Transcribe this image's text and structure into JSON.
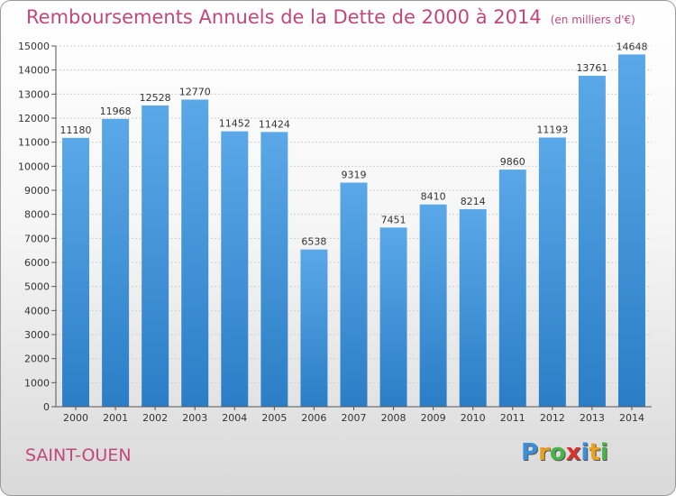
{
  "title": "Remboursements Annuels de la Dette de 2000 à 2014",
  "unit_note": "(en milliers d'€)",
  "town": "SAINT-OUEN",
  "logo": {
    "letters": [
      "P",
      "r",
      "o",
      "x",
      "i",
      "t",
      "i"
    ],
    "colors": [
      "#3a8fd8",
      "#e8a020",
      "#4ab34a",
      "#d8342c",
      "#3a8fd8",
      "#e8a020",
      "#4ab34a"
    ]
  },
  "colors": {
    "bar_top": "#5aa8e8",
    "bar_bottom": "#2b7ec6",
    "accent": "#c2477a"
  },
  "chart_data": {
    "type": "bar",
    "title": "Remboursements Annuels de la Dette de 2000 à 2014",
    "categories": [
      "2000",
      "2001",
      "2002",
      "2003",
      "2004",
      "2005",
      "2006",
      "2007",
      "2008",
      "2009",
      "2010",
      "2011",
      "2012",
      "2013",
      "2014"
    ],
    "values": [
      11180,
      11968,
      12528,
      12770,
      11452,
      11424,
      6538,
      9319,
      7451,
      8410,
      8214,
      9860,
      11193,
      13761,
      14648
    ],
    "ylim": [
      0,
      15000
    ],
    "yticks": [
      0,
      1000,
      2000,
      3000,
      4000,
      5000,
      6000,
      7000,
      8000,
      9000,
      10000,
      11000,
      12000,
      13000,
      14000,
      15000
    ],
    "grid": true,
    "xlabel": "",
    "ylabel": ""
  }
}
